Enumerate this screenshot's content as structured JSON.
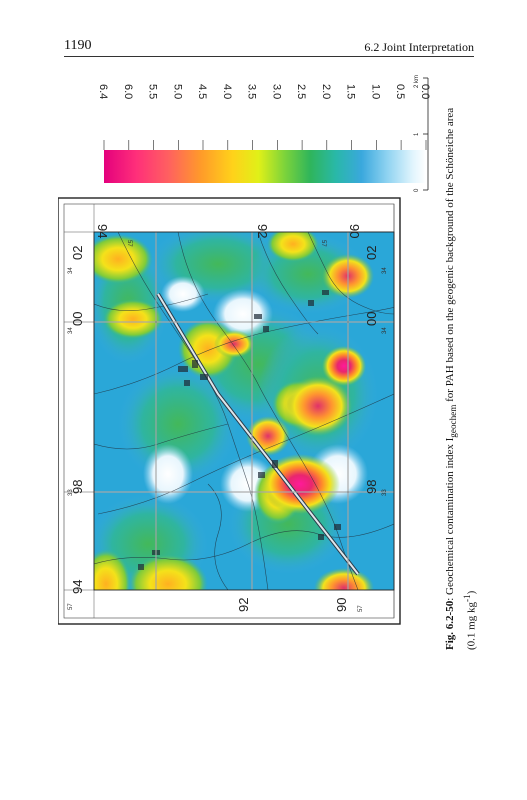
{
  "header": {
    "page_number": "1190",
    "section": "6.2 Joint Interpretation"
  },
  "legend": {
    "scale_values": [
      "6.4",
      "6.0",
      "5.5",
      "5.0",
      "4.5",
      "4.0",
      "3.5",
      "3.0",
      "2.5",
      "2.0",
      "1.5",
      "1.0",
      "0.5",
      "0.0"
    ],
    "scalebar_labels": [
      "0",
      "1",
      "2 km"
    ]
  },
  "map": {
    "big_grid_labels_left": [
      "94",
      "92",
      "90"
    ],
    "big_grid_labels_bottom": [
      "98",
      "00",
      "02"
    ],
    "small_grid_labels": {
      "tl_left": "57",
      "tl_top": "34",
      "bl_left": "57",
      "bottom_34": "34",
      "bottom_33": "33",
      "top_34": "34",
      "top_33": "33",
      "mid_57": "57"
    }
  },
  "caption": {
    "label": "Fig. 6.2-50",
    "text_before_sub": ": Geochemical contamination index I",
    "subscript": "geochem",
    "text_after_sub": " for PAH based on the geogenic background of the Schöneiche area",
    "line2": "(0.1 mg kg",
    "superscript": "-1",
    "line2_end": ")"
  }
}
